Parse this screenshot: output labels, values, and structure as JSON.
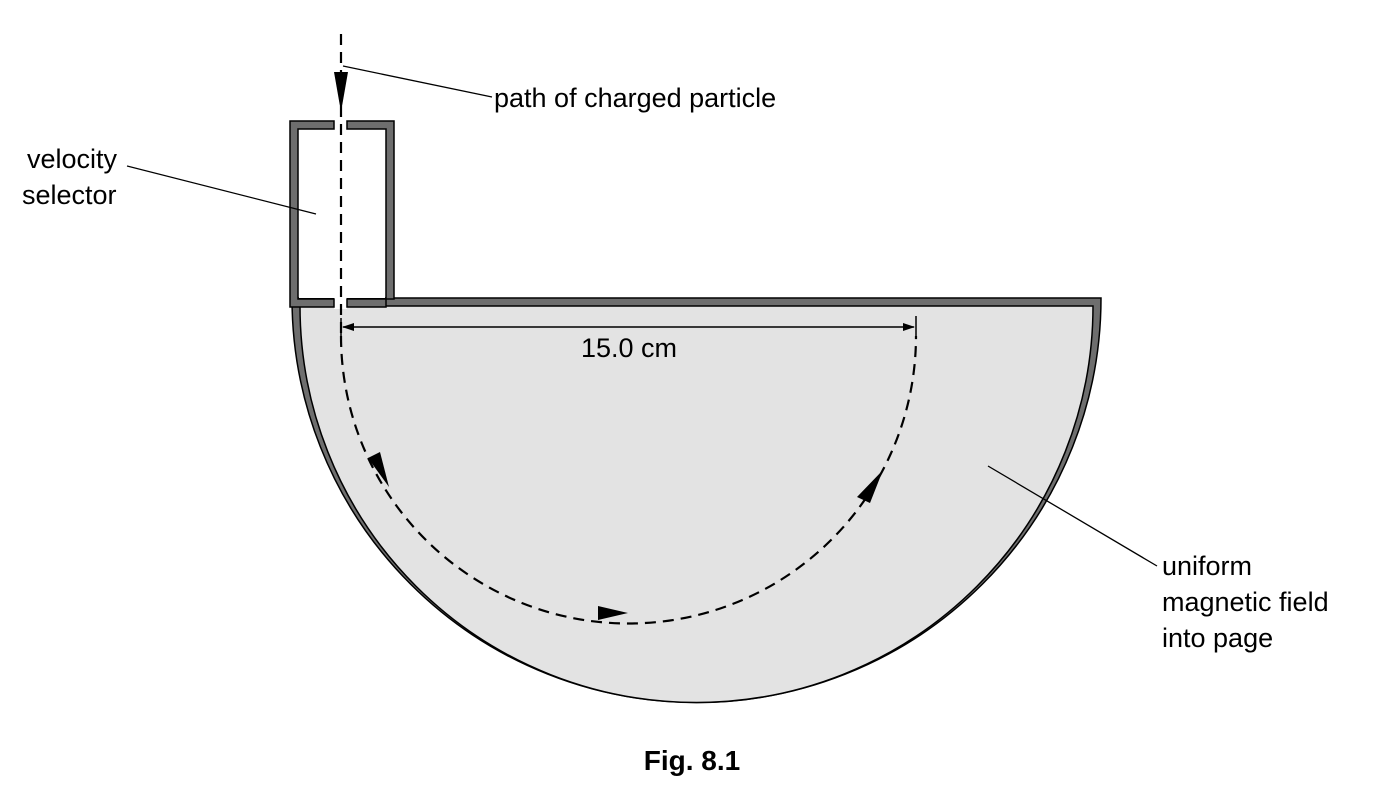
{
  "labels": {
    "path": "path of charged particle",
    "velocity_line1": "velocity",
    "velocity_line2": "selector",
    "dimension": "15.0 cm",
    "field_line1": "uniform",
    "field_line2": "magnetic field",
    "field_line3": "into page"
  },
  "caption": "Fig. 8.1",
  "colors": {
    "chamber_fill": "#e3e3e3",
    "wall": "#6e6e6e",
    "outline": "#000000"
  }
}
